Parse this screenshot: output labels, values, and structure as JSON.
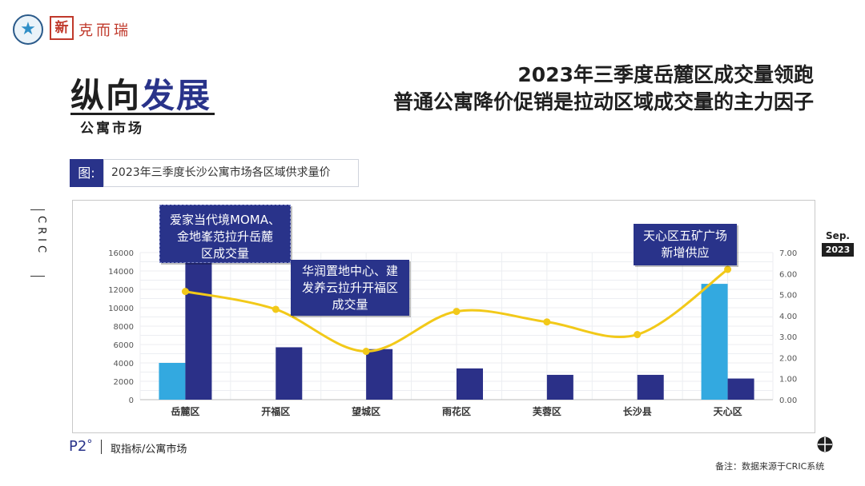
{
  "logo": {
    "emblem": "star-emblem-icon",
    "seal_char": "新",
    "brand_text": "克而瑞"
  },
  "section": {
    "title_plain": "纵向",
    "title_highlight": "发展",
    "subtitle": "公寓市场"
  },
  "headline": {
    "line1": "2023年三季度岳麓区成交量领跑",
    "line2": "普通公寓降价促销是拉动区域成交量的主力因子"
  },
  "figure": {
    "tag": "图:",
    "caption": "2023年三季度长沙公寓市场各区域供求量价"
  },
  "side": {
    "cric_vertical": "CRIC",
    "date_month": "Sep.",
    "date_year": "2023"
  },
  "callouts": {
    "c1": [
      "爱家当代境MOMA、",
      "金地峯范拉升岳麓",
      "区成交量"
    ],
    "c2": [
      "华润置地中心、建",
      "发养云拉升开福区",
      "成交量"
    ],
    "c3": [
      "天心区五矿广场",
      "新增供应"
    ]
  },
  "chart_data": {
    "type": "bar",
    "categories": [
      "岳麓区",
      "开福区",
      "望城区",
      "雨花区",
      "芙蓉区",
      "长沙县",
      "天心区"
    ],
    "series": [
      {
        "kind": "bar",
        "axis": "left",
        "color": "#33a9e0",
        "values": [
          4000,
          0,
          0,
          0,
          0,
          0,
          12600
        ]
      },
      {
        "kind": "bar",
        "axis": "left",
        "color": "#2b3088",
        "values": [
          17000,
          5700,
          5500,
          3400,
          2700,
          2700,
          2300
        ]
      },
      {
        "kind": "line",
        "axis": "right",
        "color": "#f2c919",
        "values": [
          5.15,
          4.3,
          2.3,
          4.2,
          3.7,
          3.1,
          6.2
        ]
      }
    ],
    "y_left": {
      "min": 0,
      "max": 16000,
      "ticks": [
        "0",
        "2000",
        "4000",
        "6000",
        "8000",
        "10000",
        "12000",
        "14000",
        "16000"
      ]
    },
    "y_right": {
      "min": 0,
      "max": 7,
      "ticks": [
        "0.00",
        "1.00",
        "2.00",
        "3.00",
        "4.00",
        "5.00",
        "6.00",
        "7.00"
      ]
    },
    "grid": true,
    "legend": "none"
  },
  "footer": {
    "page": "P2",
    "degree": "°",
    "label": "取指标/公寓市场",
    "source": "备注：数据来源于CRIC系统"
  },
  "icons": {
    "compass": "compass-icon"
  }
}
